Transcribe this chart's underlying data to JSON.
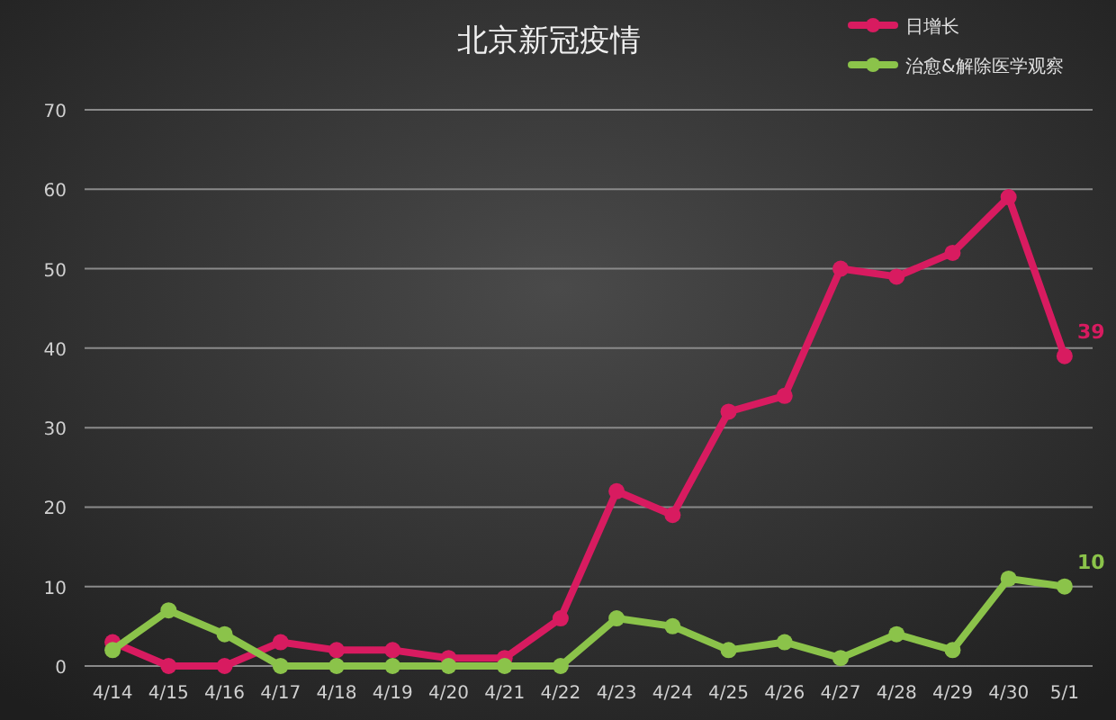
{
  "chart_data": {
    "type": "line",
    "title": "北京新冠疫情",
    "categories": [
      "4/14",
      "4/15",
      "4/16",
      "4/17",
      "4/18",
      "4/19",
      "4/20",
      "4/21",
      "4/22",
      "4/23",
      "4/24",
      "4/25",
      "4/26",
      "4/27",
      "4/28",
      "4/29",
      "4/30",
      "5/1"
    ],
    "series": [
      {
        "name": "日增长",
        "color": "#d81b60",
        "values": [
          3,
          0,
          0,
          3,
          2,
          2,
          1,
          1,
          6,
          22,
          19,
          32,
          34,
          50,
          49,
          52,
          59,
          39
        ],
        "value_labels": [
          null,
          null,
          null,
          null,
          null,
          null,
          null,
          null,
          null,
          null,
          null,
          null,
          null,
          null,
          null,
          null,
          null,
          "39"
        ]
      },
      {
        "name": "治愈&解除医学观察",
        "color": "#8bc34a",
        "values": [
          2,
          7,
          4,
          0,
          0,
          0,
          0,
          0,
          0,
          6,
          5,
          2,
          3,
          1,
          4,
          2,
          11,
          10
        ],
        "value_labels": [
          null,
          null,
          null,
          null,
          null,
          null,
          null,
          null,
          null,
          null,
          null,
          null,
          null,
          null,
          null,
          null,
          null,
          "10"
        ]
      }
    ],
    "ylim": [
      0,
      70
    ],
    "yticks": [
      0,
      10,
      20,
      30,
      40,
      50,
      60,
      70
    ],
    "grid": "y",
    "legend": "top right",
    "marker": "circle",
    "line_style": "solid"
  }
}
